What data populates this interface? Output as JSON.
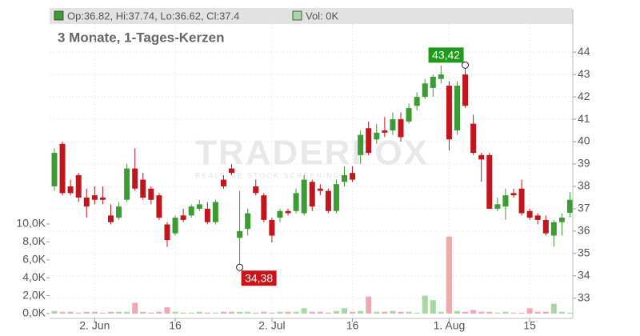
{
  "chart_data": {
    "type": "candlestick",
    "legend": {
      "ohlc": "Op:36.82, Hi:37.74, Lo:36.62, Cl:37.4",
      "volume": "Vol: 0K"
    },
    "subtitle": "3 Monate, 1-Tages-Kerzen",
    "watermark": {
      "brand": "TRADERFOX",
      "tagline": "REALTIME STOCK SCREENING"
    },
    "categories": [
      null,
      null,
      null,
      null,
      null,
      "2. Jun",
      null,
      null,
      null,
      null,
      null,
      null,
      null,
      null,
      null,
      "16",
      null,
      null,
      null,
      null,
      null,
      null,
      null,
      null,
      null,
      null,
      null,
      "2. Jul",
      null,
      null,
      null,
      null,
      null,
      null,
      null,
      null,
      null,
      "16",
      null,
      null,
      null,
      null,
      null,
      null,
      null,
      null,
      null,
      null,
      null,
      "1. Aug",
      null,
      null,
      null,
      null,
      null,
      null,
      null,
      null,
      null,
      "15",
      null,
      null,
      null,
      null,
      null
    ],
    "open": [
      38.0,
      39.9,
      38.0,
      38.5,
      37.5,
      37.6,
      37.5,
      36.7,
      36.6,
      37.4,
      38.8,
      38.3,
      37.9,
      37.6,
      36.3,
      35.9,
      36.7,
      36.7,
      37.0,
      37.0,
      36.4,
      38.3,
      38.8,
      35.7,
      36.1,
      38.0,
      37.6,
      36.5,
      36.6,
      36.9,
      36.9,
      36.8,
      38.2,
      37.9,
      37.8,
      36.9,
      38.2,
      38.6,
      39.4,
      40.6,
      40.1,
      40.5,
      40.5,
      41.0,
      40.9,
      41.6,
      42.0,
      42.4,
      42.8,
      42.5,
      40.5,
      43.0,
      40.8,
      39.4,
      39.4,
      37.0,
      37.1,
      37.7,
      37.9,
      36.9,
      36.7,
      36.5,
      35.8,
      36.4,
      36.82
    ],
    "high": [
      39.7,
      40.0,
      38.3,
      38.6,
      37.9,
      38.0,
      38.0,
      37.2,
      37.3,
      39.0,
      39.7,
      38.6,
      38.0,
      37.7,
      36.4,
      36.7,
      37.0,
      37.2,
      37.4,
      37.3,
      37.4,
      38.5,
      39.0,
      37.8,
      37.0,
      38.3,
      37.7,
      36.6,
      37.0,
      37.0,
      37.9,
      38.5,
      38.3,
      38.1,
      37.9,
      38.3,
      38.9,
      38.9,
      40.5,
      40.9,
      40.8,
      41.1,
      41.3,
      41.3,
      41.7,
      42.2,
      42.8,
      43.0,
      43.4,
      42.7,
      42.7,
      43.42,
      41.2,
      39.5,
      39.5,
      37.5,
      37.9,
      37.9,
      38.3,
      37.0,
      36.8,
      36.7,
      36.5,
      36.8,
      37.74
    ],
    "low": [
      37.8,
      37.6,
      37.6,
      37.3,
      36.6,
      37.2,
      37.2,
      36.3,
      36.5,
      37.3,
      37.8,
      37.4,
      37.2,
      36.5,
      35.3,
      35.8,
      36.4,
      36.6,
      36.9,
      36.3,
      36.3,
      37.9,
      38.5,
      34.38,
      35.8,
      37.6,
      36.4,
      35.5,
      36.4,
      36.7,
      36.8,
      36.7,
      36.9,
      37.6,
      36.8,
      36.8,
      38.0,
      38.2,
      39.0,
      39.4,
      39.9,
      40.2,
      40.3,
      40.0,
      40.8,
      41.4,
      41.9,
      42.0,
      42.6,
      39.6,
      40.3,
      41.5,
      39.4,
      38.2,
      37.0,
      36.9,
      36.5,
      37.5,
      36.7,
      36.5,
      36.3,
      35.8,
      35.3,
      35.8,
      36.62
    ],
    "close": [
      39.5,
      37.7,
      37.7,
      37.5,
      37.1,
      37.4,
      37.4,
      36.4,
      37.1,
      38.8,
      37.9,
      37.5,
      37.4,
      36.6,
      35.6,
      36.6,
      36.5,
      37.1,
      37.2,
      36.4,
      37.3,
      38.0,
      38.6,
      36.0,
      36.8,
      37.7,
      36.5,
      35.8,
      36.9,
      36.8,
      37.7,
      38.3,
      37.1,
      37.8,
      36.9,
      38.1,
      38.5,
      38.3,
      40.3,
      39.5,
      40.4,
      40.4,
      41.0,
      40.2,
      41.5,
      42.0,
      42.6,
      42.9,
      43.0,
      40.1,
      42.5,
      41.6,
      39.5,
      39.2,
      37.0,
      37.2,
      37.6,
      37.6,
      36.8,
      36.6,
      36.5,
      35.9,
      36.4,
      36.6,
      37.4
    ],
    "volume": [
      0.3,
      0.2,
      0.2,
      0.1,
      0.2,
      0.2,
      0.1,
      0.2,
      0.2,
      0.2,
      1.2,
      0.2,
      0.1,
      0.2,
      0.7,
      0.2,
      0.1,
      0.1,
      0.2,
      0.1,
      0.1,
      0.2,
      0.2,
      0.2,
      0.2,
      0.1,
      0.2,
      0.1,
      0.2,
      0.2,
      0.2,
      0.6,
      0.2,
      0.2,
      0.1,
      0.3,
      0.6,
      0.2,
      0.3,
      1.9,
      0.2,
      0.2,
      0.3,
      0.2,
      0.2,
      0.1,
      2.0,
      1.5,
      0.2,
      8.6,
      0.3,
      0.2,
      0.4,
      0.2,
      0.2,
      0.1,
      0.2,
      0.1,
      0.1,
      0.6,
      0.2,
      0.2,
      1.1,
      0.2,
      0.1
    ],
    "colors": {
      "up": "#3c9c34",
      "down": "#c2151c",
      "volume_up": "#a6d9a1",
      "volume_down": "#f0a7b0"
    },
    "ylim": [
      32.1,
      45.9
    ],
    "yticks": [
      33,
      34,
      35,
      36,
      37,
      38,
      39,
      40,
      41,
      42,
      43,
      44
    ],
    "y2lim": [
      0,
      10
    ],
    "y2ticks": [
      {
        "value": 0,
        "label": "0,0K"
      },
      {
        "value": 2,
        "label": "2,0K"
      },
      {
        "value": 4,
        "label": "4,0K"
      },
      {
        "value": 6,
        "label": "6,0K"
      },
      {
        "value": 8,
        "label": "8,0K"
      },
      {
        "value": 10,
        "label": "10,0K"
      }
    ],
    "annotations": [
      {
        "label": "43,42",
        "value": 43.42,
        "kind": "high"
      },
      {
        "label": "34,38",
        "value": 34.38,
        "kind": "low"
      }
    ],
    "grid": true
  }
}
